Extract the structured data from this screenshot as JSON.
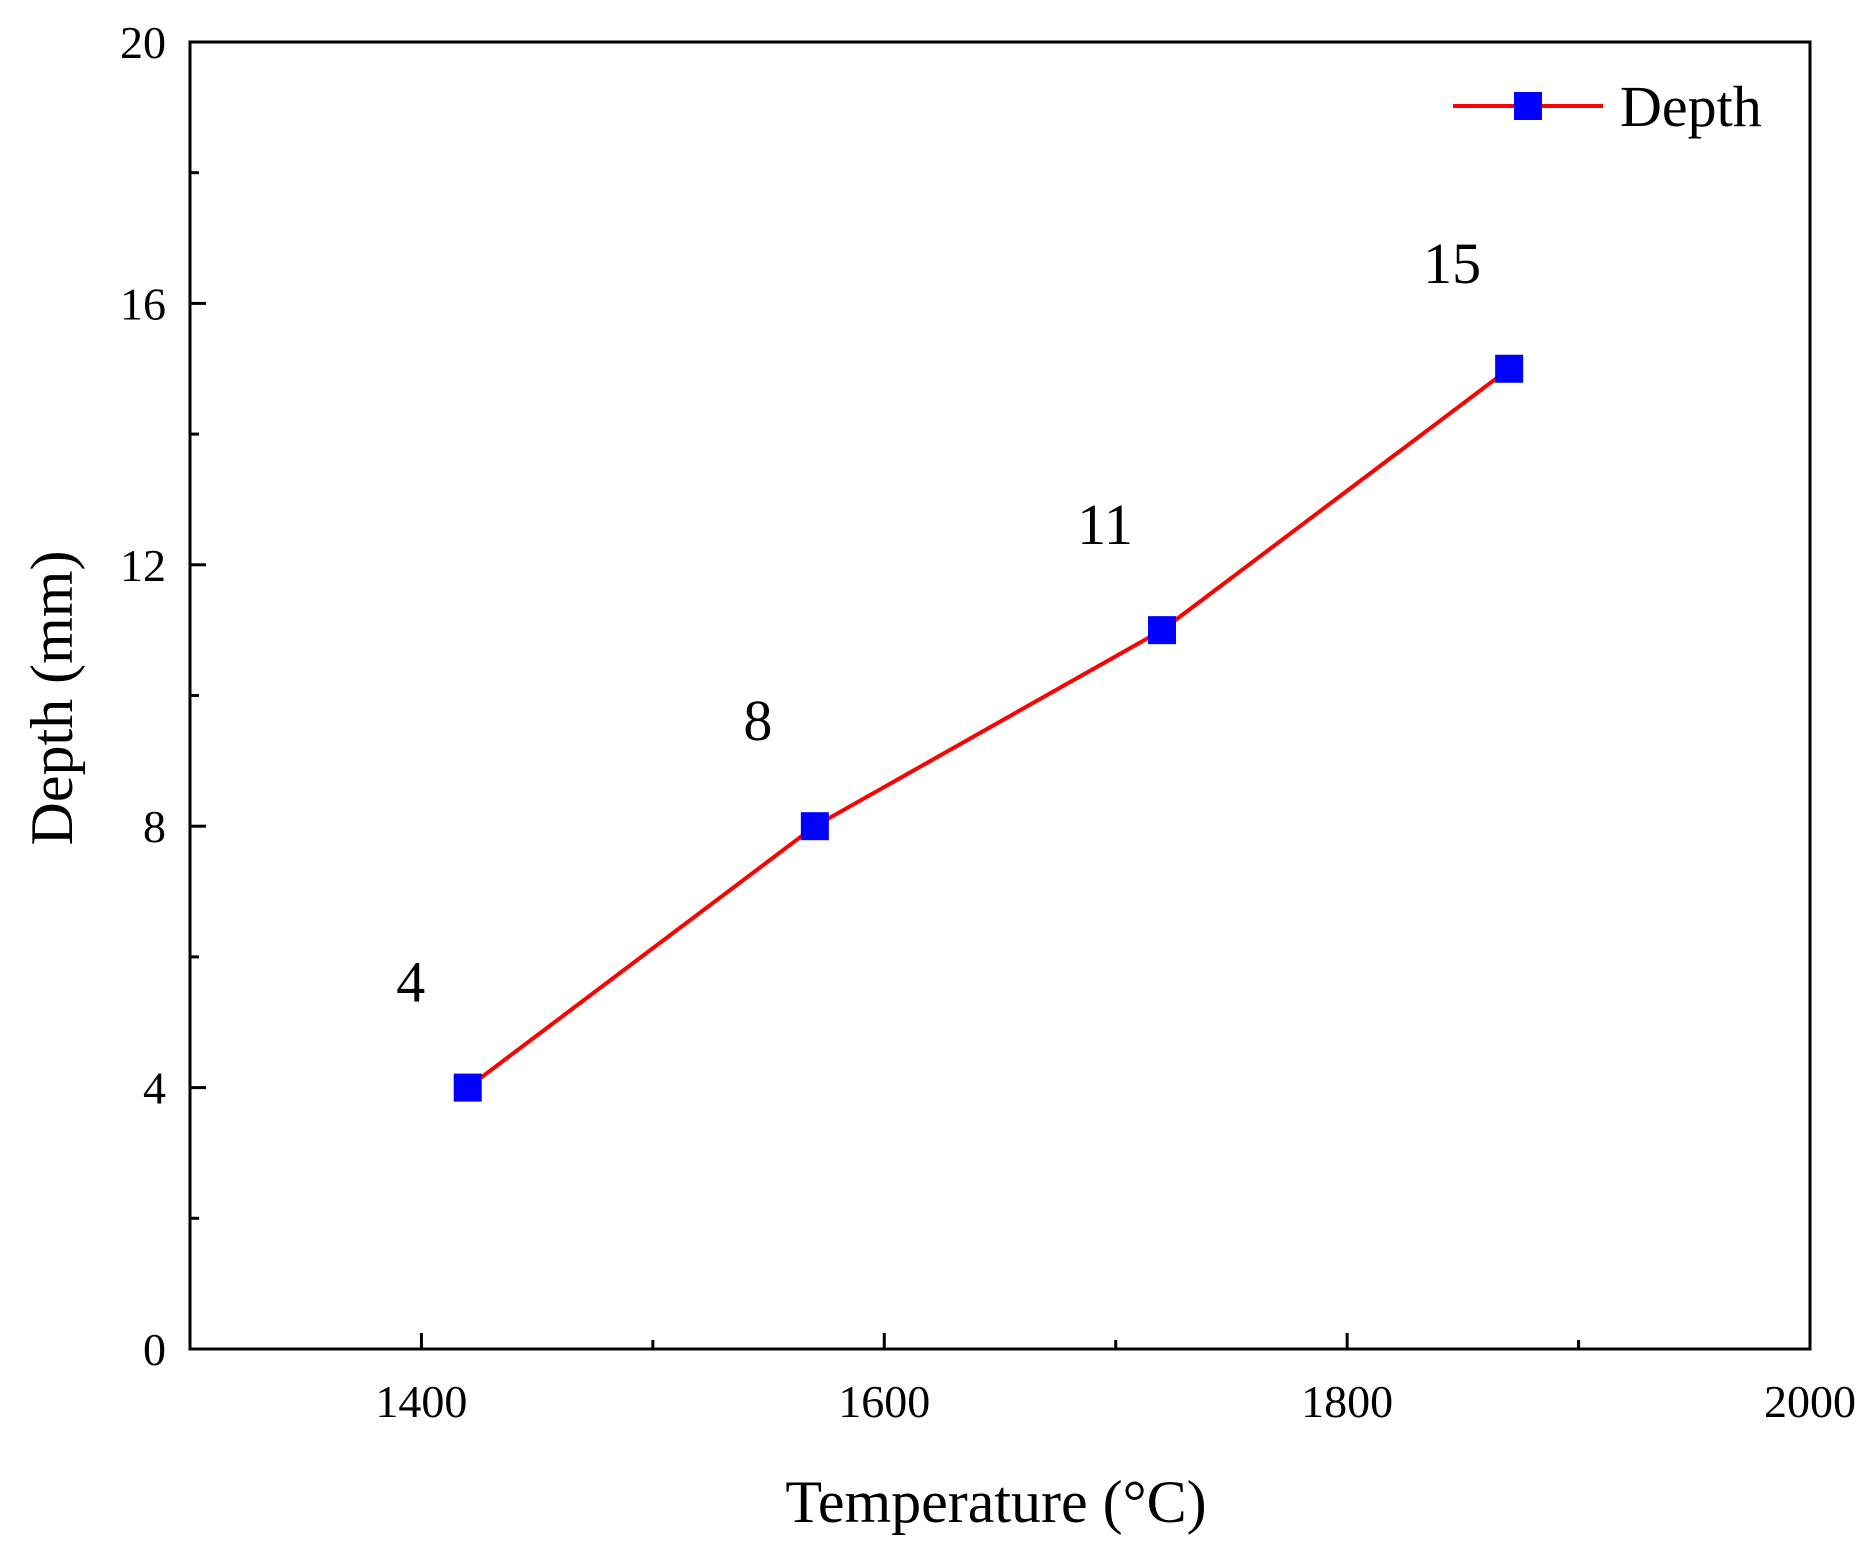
{
  "chart_data": {
    "type": "line",
    "title": "",
    "xlabel": "Temperature (°C)",
    "ylabel": "Depth (mm)",
    "xlim": [
      1300,
      2000
    ],
    "ylim": [
      0,
      20
    ],
    "xticks": [
      1400,
      1600,
      1800,
      2000
    ],
    "yticks": [
      0,
      4,
      8,
      12,
      16,
      20
    ],
    "xminor_step": 100,
    "yminor_step": 2,
    "legend": "top-right",
    "series": [
      {
        "name": "Depth",
        "line_color": "#ff0000",
        "marker_color": "#0000ff",
        "marker": "square",
        "x": [
          1420,
          1570,
          1720,
          1870
        ],
        "y": [
          4,
          8,
          11,
          15
        ],
        "labels": [
          "4",
          "8",
          "11",
          "15"
        ]
      }
    ]
  }
}
